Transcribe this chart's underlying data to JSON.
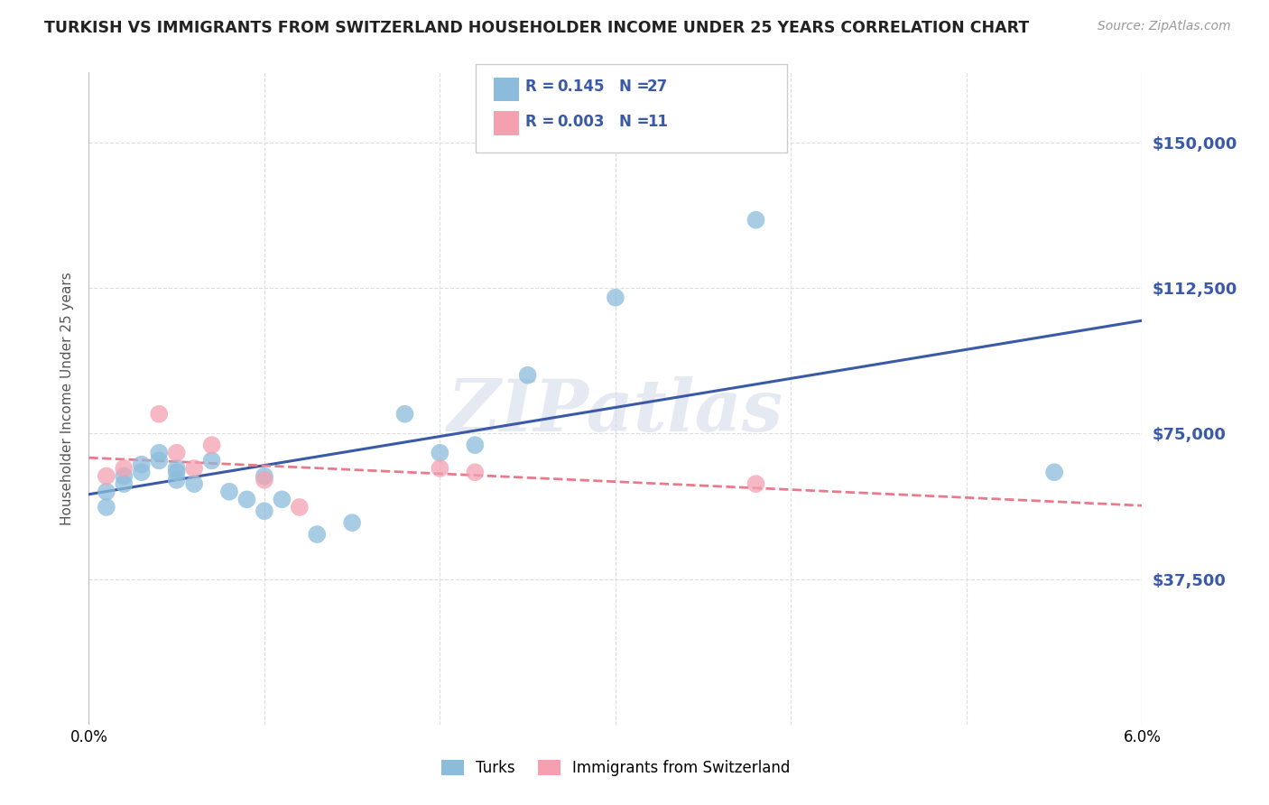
{
  "title": "TURKISH VS IMMIGRANTS FROM SWITZERLAND HOUSEHOLDER INCOME UNDER 25 YEARS CORRELATION CHART",
  "source": "Source: ZipAtlas.com",
  "ylabel": "Householder Income Under 25 years",
  "turks_R": "0.145",
  "turks_N": "27",
  "swiss_R": "0.003",
  "swiss_N": "11",
  "ytick_vals": [
    0,
    37500,
    75000,
    112500,
    150000
  ],
  "ytick_labels": [
    "",
    "$37,500",
    "$75,000",
    "$112,500",
    "$150,000"
  ],
  "xmin": 0.0,
  "xmax": 0.06,
  "ymin": 0,
  "ymax": 168000,
  "turks_color": "#8BBCDB",
  "swiss_color": "#F4A0B0",
  "turks_line_color": "#3A5AA8",
  "swiss_line_color": "#E87A8C",
  "watermark_text": "ZIPatlas",
  "turks_x": [
    0.001,
    0.001,
    0.002,
    0.002,
    0.003,
    0.003,
    0.004,
    0.004,
    0.005,
    0.005,
    0.005,
    0.006,
    0.007,
    0.008,
    0.009,
    0.01,
    0.01,
    0.011,
    0.013,
    0.015,
    0.018,
    0.02,
    0.022,
    0.025,
    0.03,
    0.038,
    0.055
  ],
  "turks_y": [
    60000,
    56000,
    62000,
    64000,
    65000,
    67000,
    70000,
    68000,
    65000,
    63000,
    66000,
    62000,
    68000,
    60000,
    58000,
    64000,
    55000,
    58000,
    49000,
    52000,
    80000,
    70000,
    72000,
    90000,
    110000,
    130000,
    65000
  ],
  "swiss_x": [
    0.001,
    0.002,
    0.004,
    0.005,
    0.006,
    0.007,
    0.01,
    0.012,
    0.02,
    0.022,
    0.038
  ],
  "swiss_y": [
    64000,
    66000,
    80000,
    70000,
    66000,
    72000,
    63000,
    56000,
    66000,
    65000,
    62000
  ]
}
